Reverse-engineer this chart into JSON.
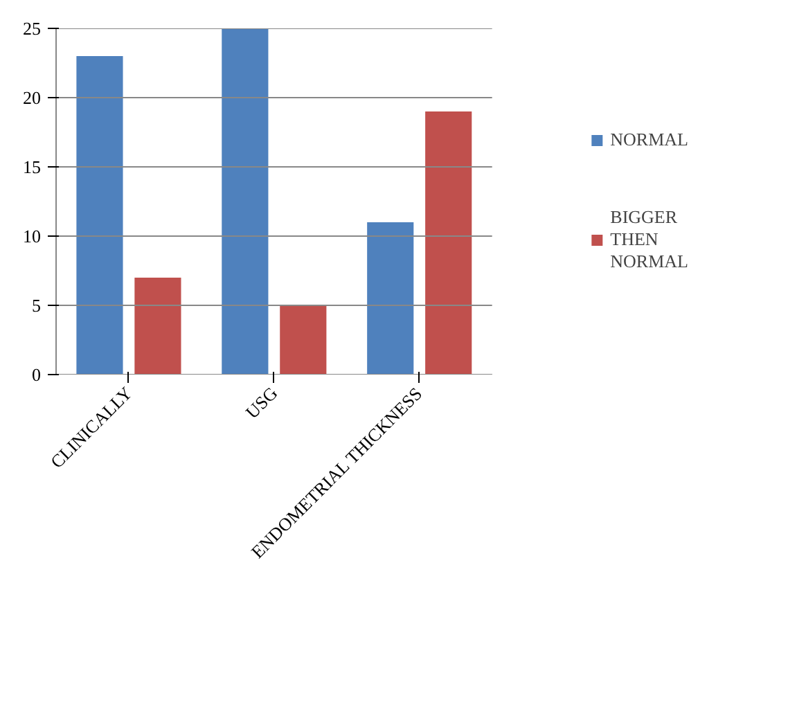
{
  "chart_data": {
    "type": "bar",
    "categories": [
      "CLINICALLY",
      "USG",
      "ENDOMETRIAL THICKNESS"
    ],
    "series": [
      {
        "name": "NORMAL",
        "color": "#4f81bd",
        "values": [
          23,
          25,
          11
        ]
      },
      {
        "name": "BIGGER THEN NORMAL",
        "color": "#c0504d",
        "values": [
          7,
          5,
          19
        ]
      }
    ],
    "ylim": [
      0,
      25
    ],
    "yticks": [
      0,
      5,
      10,
      15,
      20,
      25
    ],
    "grid": "y",
    "legend": "right"
  }
}
